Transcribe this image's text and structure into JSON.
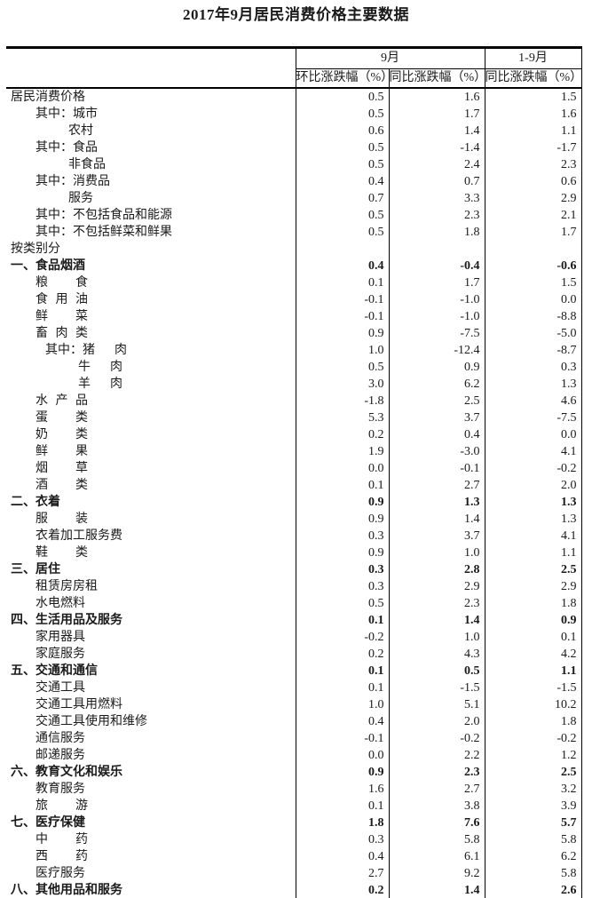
{
  "title": "2017年9月居民消费价格主要数据",
  "table": {
    "header": {
      "col_month": "9月",
      "col_ytd": "1-9月",
      "sub_mom": "环比涨跌幅（%）",
      "sub_yoy": "同比涨跌幅（%）",
      "sub_yoy_ytd": "同比涨跌幅（%）"
    },
    "rows": [
      {
        "label": "居民消费价格",
        "prefix": "",
        "indent": 0,
        "bold": false,
        "justify": "",
        "mom": "0.5",
        "yoy": "1.6",
        "ytd": "1.5"
      },
      {
        "label": "城市",
        "prefix": "其中：",
        "indent": 1,
        "bold": false,
        "justify": "",
        "mom": "0.5",
        "yoy": "1.7",
        "ytd": "1.6"
      },
      {
        "label": "农村",
        "prefix": "",
        "indent": 2,
        "bold": false,
        "justify": "",
        "mom": "0.6",
        "yoy": "1.4",
        "ytd": "1.1"
      },
      {
        "label": "食品",
        "prefix": "其中：",
        "indent": 1,
        "bold": false,
        "justify": "",
        "mom": "0.5",
        "yoy": "-1.4",
        "ytd": "-1.7"
      },
      {
        "label": "非食品",
        "prefix": "",
        "indent": 2,
        "bold": false,
        "justify": "",
        "mom": "0.5",
        "yoy": "2.4",
        "ytd": "2.3"
      },
      {
        "label": "消费品",
        "prefix": "其中：",
        "indent": 1,
        "bold": false,
        "justify": "",
        "mom": "0.4",
        "yoy": "0.7",
        "ytd": "0.6"
      },
      {
        "label": "服务",
        "prefix": "",
        "indent": 2,
        "bold": false,
        "justify": "",
        "mom": "0.7",
        "yoy": "3.3",
        "ytd": "2.9"
      },
      {
        "label": "不包括食品和能源",
        "prefix": "其中：",
        "indent": 1,
        "bold": false,
        "justify": "",
        "mom": "0.5",
        "yoy": "2.3",
        "ytd": "2.1"
      },
      {
        "label": "不包括鲜菜和鲜果",
        "prefix": "其中：",
        "indent": 1,
        "bold": false,
        "justify": "",
        "mom": "0.5",
        "yoy": "1.8",
        "ytd": "1.7"
      },
      {
        "label": "按类别分",
        "prefix": "",
        "indent": 0,
        "bold": false,
        "justify": "",
        "mom": "",
        "yoy": "",
        "ytd": ""
      },
      {
        "label": "一、食品烟酒",
        "prefix": "",
        "indent": 0,
        "bold": true,
        "justify": "",
        "mom": "0.4",
        "yoy": "-0.4",
        "ytd": "-0.6"
      },
      {
        "label": "粮食",
        "prefix": "",
        "indent": 1,
        "bold": false,
        "justify": "j4",
        "mom": "0.1",
        "yoy": "1.7",
        "ytd": "1.5"
      },
      {
        "label": "食用油",
        "prefix": "",
        "indent": 1,
        "bold": false,
        "justify": "j4",
        "mom": "-0.1",
        "yoy": "-1.0",
        "ytd": "0.0"
      },
      {
        "label": "鲜菜",
        "prefix": "",
        "indent": 1,
        "bold": false,
        "justify": "j4",
        "mom": "-0.1",
        "yoy": "-1.0",
        "ytd": "-8.8"
      },
      {
        "label": "畜肉类",
        "prefix": "",
        "indent": 1,
        "bold": false,
        "justify": "j4",
        "mom": "0.9",
        "yoy": "-7.5",
        "ytd": "-5.0"
      },
      {
        "label": "猪肉",
        "prefix": "其中：",
        "indent": 3,
        "bold": false,
        "justify": "j3",
        "mom": "1.0",
        "yoy": "-12.4",
        "ytd": "-8.7"
      },
      {
        "label": "牛肉",
        "prefix": "",
        "indent": 4,
        "bold": false,
        "justify": "j3",
        "mom": "0.5",
        "yoy": "0.9",
        "ytd": "0.3"
      },
      {
        "label": "羊肉",
        "prefix": "",
        "indent": 4,
        "bold": false,
        "justify": "j3",
        "mom": "3.0",
        "yoy": "6.2",
        "ytd": "1.3"
      },
      {
        "label": "水产品",
        "prefix": "",
        "indent": 1,
        "bold": false,
        "justify": "j4",
        "mom": "-1.8",
        "yoy": "2.5",
        "ytd": "4.6"
      },
      {
        "label": "蛋类",
        "prefix": "",
        "indent": 1,
        "bold": false,
        "justify": "j4",
        "mom": "5.3",
        "yoy": "3.7",
        "ytd": "-7.5"
      },
      {
        "label": "奶类",
        "prefix": "",
        "indent": 1,
        "bold": false,
        "justify": "j4",
        "mom": "0.2",
        "yoy": "0.4",
        "ytd": "0.0"
      },
      {
        "label": "鲜果",
        "prefix": "",
        "indent": 1,
        "bold": false,
        "justify": "j4",
        "mom": "1.9",
        "yoy": "-3.0",
        "ytd": "4.1"
      },
      {
        "label": "烟草",
        "prefix": "",
        "indent": 1,
        "bold": false,
        "justify": "j4",
        "mom": "0.0",
        "yoy": "-0.1",
        "ytd": "-0.2"
      },
      {
        "label": "酒类",
        "prefix": "",
        "indent": 1,
        "bold": false,
        "justify": "j4",
        "mom": "0.1",
        "yoy": "2.7",
        "ytd": "2.0"
      },
      {
        "label": "二、衣着",
        "prefix": "",
        "indent": 0,
        "bold": true,
        "justify": "",
        "mom": "0.9",
        "yoy": "1.3",
        "ytd": "1.3"
      },
      {
        "label": "服装",
        "prefix": "",
        "indent": 1,
        "bold": false,
        "justify": "j4",
        "mom": "0.9",
        "yoy": "1.4",
        "ytd": "1.3"
      },
      {
        "label": "衣着加工服务费",
        "prefix": "",
        "indent": 1,
        "bold": false,
        "justify": "",
        "mom": "0.3",
        "yoy": "3.7",
        "ytd": "4.1"
      },
      {
        "label": "鞋类",
        "prefix": "",
        "indent": 1,
        "bold": false,
        "justify": "j4",
        "mom": "0.9",
        "yoy": "1.0",
        "ytd": "1.1"
      },
      {
        "label": "三、居住",
        "prefix": "",
        "indent": 0,
        "bold": true,
        "justify": "",
        "mom": "0.3",
        "yoy": "2.8",
        "ytd": "2.5"
      },
      {
        "label": "租赁房房租",
        "prefix": "",
        "indent": 1,
        "bold": false,
        "justify": "",
        "mom": "0.3",
        "yoy": "2.9",
        "ytd": "2.9"
      },
      {
        "label": "水电燃料",
        "prefix": "",
        "indent": 1,
        "bold": false,
        "justify": "",
        "mom": "0.5",
        "yoy": "2.3",
        "ytd": "1.8"
      },
      {
        "label": "四、生活用品及服务",
        "prefix": "",
        "indent": 0,
        "bold": true,
        "justify": "",
        "mom": "0.1",
        "yoy": "1.4",
        "ytd": "0.9"
      },
      {
        "label": "家用器具",
        "prefix": "",
        "indent": 1,
        "bold": false,
        "justify": "",
        "mom": "-0.2",
        "yoy": "1.0",
        "ytd": "0.1"
      },
      {
        "label": "家庭服务",
        "prefix": "",
        "indent": 1,
        "bold": false,
        "justify": "",
        "mom": "0.2",
        "yoy": "4.3",
        "ytd": "4.2"
      },
      {
        "label": "五、交通和通信",
        "prefix": "",
        "indent": 0,
        "bold": true,
        "justify": "",
        "mom": "0.1",
        "yoy": "0.5",
        "ytd": "1.1"
      },
      {
        "label": "交通工具",
        "prefix": "",
        "indent": 1,
        "bold": false,
        "justify": "",
        "mom": "0.1",
        "yoy": "-1.5",
        "ytd": "-1.5"
      },
      {
        "label": "交通工具用燃料",
        "prefix": "",
        "indent": 1,
        "bold": false,
        "justify": "",
        "mom": "1.0",
        "yoy": "5.1",
        "ytd": "10.2"
      },
      {
        "label": "交通工具使用和维修",
        "prefix": "",
        "indent": 1,
        "bold": false,
        "justify": "",
        "mom": "0.4",
        "yoy": "2.0",
        "ytd": "1.8"
      },
      {
        "label": "通信服务",
        "prefix": "",
        "indent": 1,
        "bold": false,
        "justify": "",
        "mom": "-0.1",
        "yoy": "-0.2",
        "ytd": "-0.2"
      },
      {
        "label": "邮递服务",
        "prefix": "",
        "indent": 1,
        "bold": false,
        "justify": "",
        "mom": "0.0",
        "yoy": "2.2",
        "ytd": "1.2"
      },
      {
        "label": "六、教育文化和娱乐",
        "prefix": "",
        "indent": 0,
        "bold": true,
        "justify": "",
        "mom": "0.9",
        "yoy": "2.3",
        "ytd": "2.5"
      },
      {
        "label": "教育服务",
        "prefix": "",
        "indent": 1,
        "bold": false,
        "justify": "",
        "mom": "1.6",
        "yoy": "2.7",
        "ytd": "3.2"
      },
      {
        "label": "旅游",
        "prefix": "",
        "indent": 1,
        "bold": false,
        "justify": "j4",
        "mom": "0.1",
        "yoy": "3.8",
        "ytd": "3.9"
      },
      {
        "label": "七、医疗保健",
        "prefix": "",
        "indent": 0,
        "bold": true,
        "justify": "",
        "mom": "1.8",
        "yoy": "7.6",
        "ytd": "5.7"
      },
      {
        "label": "中药",
        "prefix": "",
        "indent": 1,
        "bold": false,
        "justify": "j4",
        "mom": "0.3",
        "yoy": "5.8",
        "ytd": "5.8"
      },
      {
        "label": "西药",
        "prefix": "",
        "indent": 1,
        "bold": false,
        "justify": "j4",
        "mom": "0.4",
        "yoy": "6.1",
        "ytd": "6.2"
      },
      {
        "label": "医疗服务",
        "prefix": "",
        "indent": 1,
        "bold": false,
        "justify": "",
        "mom": "2.7",
        "yoy": "9.2",
        "ytd": "5.8"
      },
      {
        "label": "八、其他用品和服务",
        "prefix": "",
        "indent": 0,
        "bold": true,
        "justify": "",
        "mom": "0.2",
        "yoy": "1.4",
        "ytd": "2.6"
      }
    ]
  },
  "colors": {
    "text": "#1a1a1a",
    "border": "#000000",
    "background": "#ffffff"
  }
}
